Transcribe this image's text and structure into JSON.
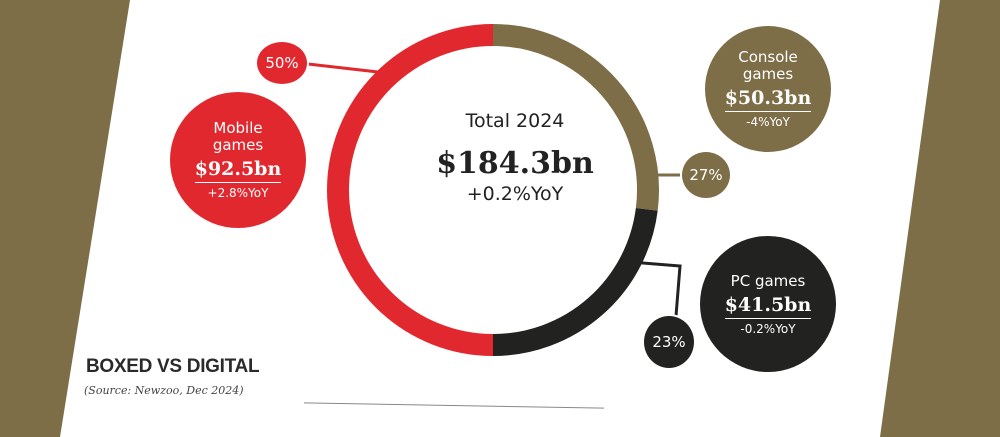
{
  "chart_data": {
    "type": "pie",
    "center": {
      "title": "Total 2024",
      "amount": "$184.3bn",
      "yoy": "+0.2%YoY"
    },
    "segments": [
      {
        "name": "Mobile games",
        "share": 50,
        "share_label": "50%",
        "amount_bn": 92.5,
        "amount_label": "$92.5bn",
        "yoy": "+2.8%YoY",
        "color": "#e0282e"
      },
      {
        "name": "Console games",
        "share": 27,
        "share_label": "27%",
        "amount_bn": 50.3,
        "amount_label": "$50.3bn",
        "yoy": "-4%YoY",
        "color": "#7d6e48"
      },
      {
        "name": "PC games",
        "share": 23,
        "share_label": "23%",
        "amount_bn": 41.5,
        "amount_label": "$41.5bn",
        "yoy": "-0.2%YoY",
        "color": "#222220"
      }
    ],
    "order_clockwise_from_top": [
      "Console games",
      "PC games",
      "Mobile games"
    ]
  },
  "footer": {
    "section_title": "BOXED VS DIGITAL",
    "source": "(Source: Newzoo, Dec 2024)"
  }
}
